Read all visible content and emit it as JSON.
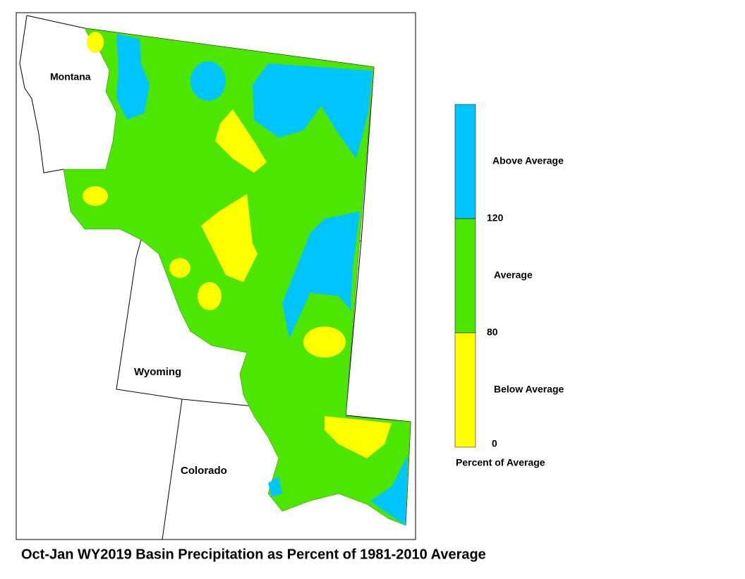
{
  "title": "Oct-Jan WY2019 Basin Precipitation as Percent of 1981-2010 Average",
  "states": [
    "Montana",
    "Wyoming",
    "Colorado"
  ],
  "legend": {
    "title": "Percent of Average",
    "classes": [
      {
        "label": "Above Average",
        "color": "#00c5ff"
      },
      {
        "label": "Average",
        "color": "#4ce600"
      },
      {
        "label": "Below Average",
        "color": "#ffff00"
      }
    ],
    "ticks": [
      120,
      80,
      0
    ]
  }
}
